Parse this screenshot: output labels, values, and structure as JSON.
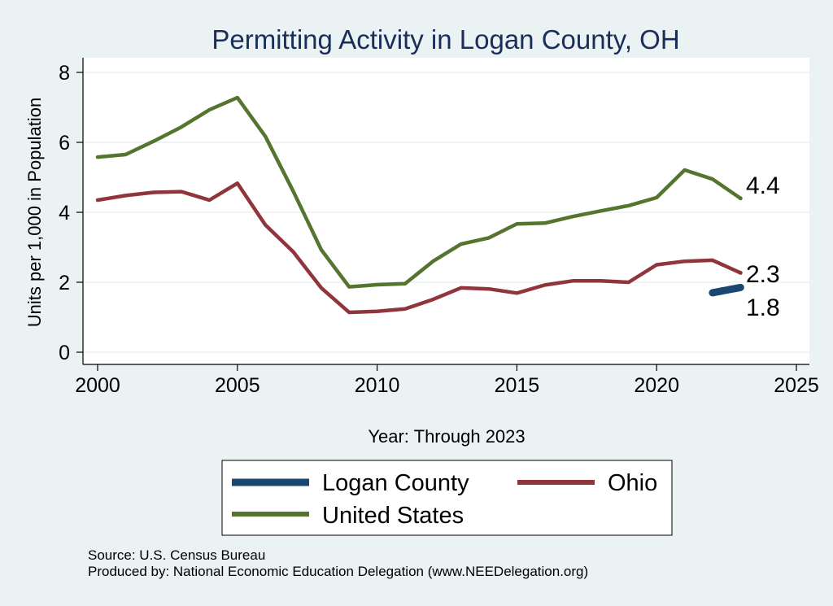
{
  "colors": {
    "background": "#eaf2f3",
    "plot_background": "#ffffff",
    "title": "#1a2e5a",
    "grid": "#eaf2f3",
    "axis": "#000000",
    "logan": "#1a476f",
    "ohio": "#90353b",
    "us": "#55752f"
  },
  "chart_data": {
    "type": "line",
    "title": "Permitting Activity in Logan County, OH",
    "xlabel": "Year: Through 2023",
    "ylabel": "Units per 1,000 in Population",
    "xlim": [
      2000,
      2025
    ],
    "ylim": [
      0,
      8
    ],
    "x_ticks": [
      2000,
      2005,
      2010,
      2015,
      2020,
      2025
    ],
    "y_ticks": [
      0,
      2,
      4,
      6,
      8
    ],
    "grid": true,
    "legend_position": "bottom",
    "series": [
      {
        "key": "logan",
        "name": "Logan County",
        "color": "#1a476f",
        "x": [
          2022,
          2023
        ],
        "y": [
          1.7,
          1.85
        ],
        "end_label": "1.8"
      },
      {
        "key": "ohio",
        "name": "Ohio",
        "color": "#90353b",
        "x": [
          2000,
          2001,
          2002,
          2003,
          2004,
          2005,
          2006,
          2007,
          2008,
          2009,
          2010,
          2011,
          2012,
          2013,
          2014,
          2015,
          2016,
          2017,
          2018,
          2019,
          2020,
          2021,
          2022,
          2023
        ],
        "y": [
          4.35,
          4.48,
          4.57,
          4.59,
          4.35,
          4.83,
          3.64,
          2.87,
          1.84,
          1.14,
          1.17,
          1.24,
          1.51,
          1.84,
          1.81,
          1.69,
          1.92,
          2.04,
          2.04,
          2.0,
          2.5,
          2.6,
          2.63,
          2.27
        ],
        "end_label": "2.3"
      },
      {
        "key": "us",
        "name": "United States",
        "color": "#55752f",
        "x": [
          2000,
          2001,
          2002,
          2003,
          2004,
          2005,
          2006,
          2007,
          2008,
          2009,
          2010,
          2011,
          2012,
          2013,
          2014,
          2015,
          2016,
          2017,
          2018,
          2019,
          2020,
          2021,
          2022,
          2023
        ],
        "y": [
          5.58,
          5.65,
          6.03,
          6.44,
          6.93,
          7.28,
          6.17,
          4.6,
          2.93,
          1.87,
          1.93,
          1.96,
          2.6,
          3.09,
          3.27,
          3.67,
          3.69,
          3.88,
          4.04,
          4.19,
          4.42,
          5.21,
          4.95,
          4.4
        ],
        "end_label": "4.4"
      }
    ]
  },
  "footer": {
    "source": "Source: U.S. Census Bureau",
    "produced_by": "Produced by: National Economic Education Delegation (www.NEEDelegation.org)"
  }
}
